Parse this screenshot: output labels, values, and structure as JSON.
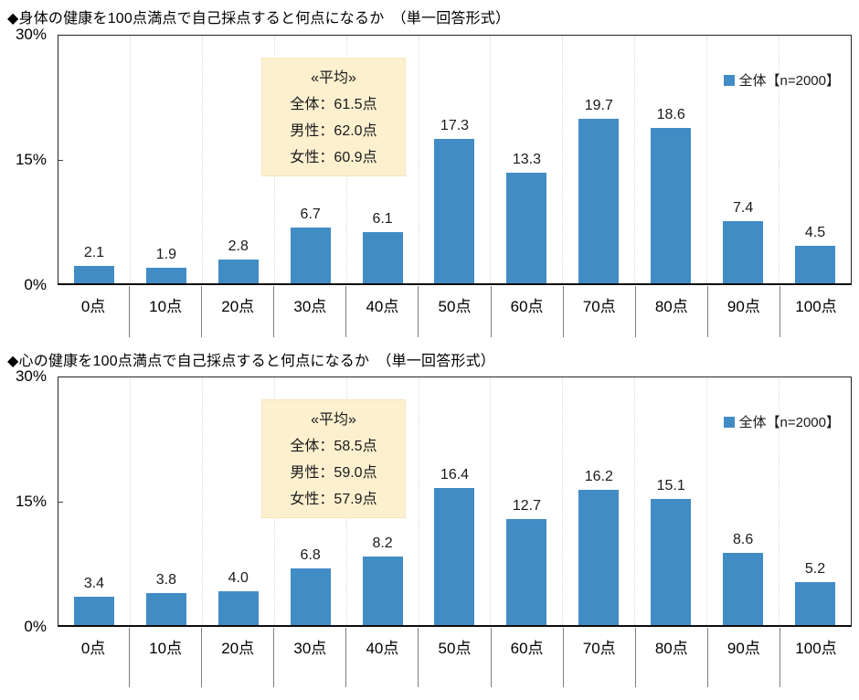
{
  "colors": {
    "bar": "#428CC6",
    "avg_box_bg": "#FDF0CF",
    "avg_box_border": "#F7E5BD",
    "grid_separator": "#D9D9D9",
    "xlabel_separator": "#7F7F7F",
    "plot_border": "#262626"
  },
  "chart_data": [
    {
      "type": "bar",
      "title": "◆身体の健康を100点満点で自己採点すると何点になるか　（単一回答形式）",
      "legend": "全体【n=2000】",
      "legend_position": "top-right",
      "categories": [
        "0点",
        "10点",
        "20点",
        "30点",
        "40点",
        "50点",
        "60点",
        "70点",
        "80点",
        "90点",
        "100点"
      ],
      "values": [
        2.1,
        1.9,
        2.8,
        6.7,
        6.1,
        17.3,
        13.3,
        19.7,
        18.6,
        7.4,
        4.5
      ],
      "value_labels": [
        "2.1",
        "1.9",
        "2.8",
        "6.7",
        "6.1",
        "17.3",
        "13.3",
        "19.7",
        "18.6",
        "7.4",
        "4.5"
      ],
      "ylim": [
        0,
        30
      ],
      "yticks": [
        "30%",
        "15%",
        "0%"
      ],
      "grid": "vertical category separators only",
      "annotation": {
        "header": "«平均»",
        "lines": [
          "全体：61.5点",
          "男性：62.0点",
          "女性：60.9点"
        ]
      }
    },
    {
      "type": "bar",
      "title": "◆心の健康を100点満点で自己採点すると何点になるか　（単一回答形式）",
      "legend": "全体【n=2000】",
      "legend_position": "top-right",
      "categories": [
        "0点",
        "10点",
        "20点",
        "30点",
        "40点",
        "50点",
        "60点",
        "70点",
        "80点",
        "90点",
        "100点"
      ],
      "values": [
        3.4,
        3.8,
        4.0,
        6.8,
        8.2,
        16.4,
        12.7,
        16.2,
        15.1,
        8.6,
        5.2
      ],
      "value_labels": [
        "3.4",
        "3.8",
        "4.0",
        "6.8",
        "8.2",
        "16.4",
        "12.7",
        "16.2",
        "15.1",
        "8.6",
        "5.2"
      ],
      "ylim": [
        0,
        30
      ],
      "yticks": [
        "30%",
        "15%",
        "0%"
      ],
      "grid": "vertical category separators only",
      "annotation": {
        "header": "«平均»",
        "lines": [
          "全体：58.5点",
          "男性：59.0点",
          "女性：57.9点"
        ]
      }
    }
  ],
  "layout_note": "two stacked single-series bar charts, 0-30% axis, data labels above bars"
}
